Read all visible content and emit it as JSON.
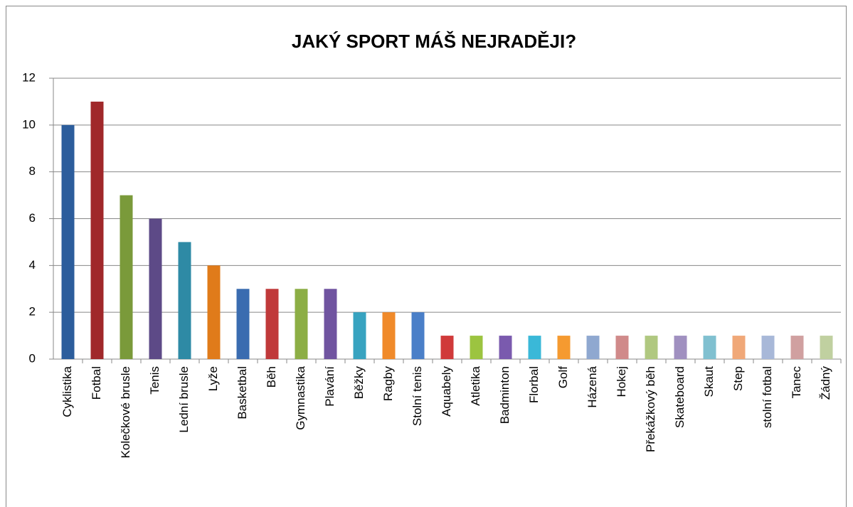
{
  "chart_data": {
    "type": "bar",
    "title": "JAKÝ SPORT MÁŠ NEJRADĚJI?",
    "categories": [
      "Cyklistika",
      "Fotbal",
      "Kolečkové brusle",
      "Tenis",
      "Lední brusle",
      "Lyže",
      "Basketbal",
      "Běh",
      "Gymnastika",
      "Plavání",
      "Běžky",
      "Ragby",
      "Stolní tenis",
      "Aquabely",
      "Atletika",
      "Badminton",
      "Florbal",
      "Golf",
      "Házená",
      "Hokej",
      "Překážkový běh",
      "Skateboard",
      "Skaut",
      "Step",
      "stolní fotbal",
      "Tanec",
      "Žádný"
    ],
    "values": [
      10,
      11,
      7,
      6,
      5,
      4,
      3,
      3,
      3,
      3,
      2,
      2,
      2,
      1,
      1,
      1,
      1,
      1,
      1,
      1,
      1,
      1,
      1,
      1,
      1,
      1,
      1
    ],
    "colors": [
      "#2c5d9c",
      "#a0282a",
      "#7a9a3a",
      "#5d4a87",
      "#2e8aa5",
      "#e07b1a",
      "#3a6cb0",
      "#c0393a",
      "#8cae45",
      "#7054a0",
      "#38a3c0",
      "#f08a2a",
      "#4a7fc8",
      "#d03a3a",
      "#9cc440",
      "#7a5aae",
      "#3ab8d8",
      "#f59a30",
      "#8fa8d0",
      "#d08a8a",
      "#b0c880",
      "#a090c0",
      "#80c0d0",
      "#f0a878",
      "#a8b8d8",
      "#d0a0a0",
      "#c0d0a0"
    ],
    "ylim": [
      0,
      12
    ],
    "yticks": [
      0,
      2,
      4,
      6,
      8,
      10,
      12
    ],
    "grid": true
  }
}
